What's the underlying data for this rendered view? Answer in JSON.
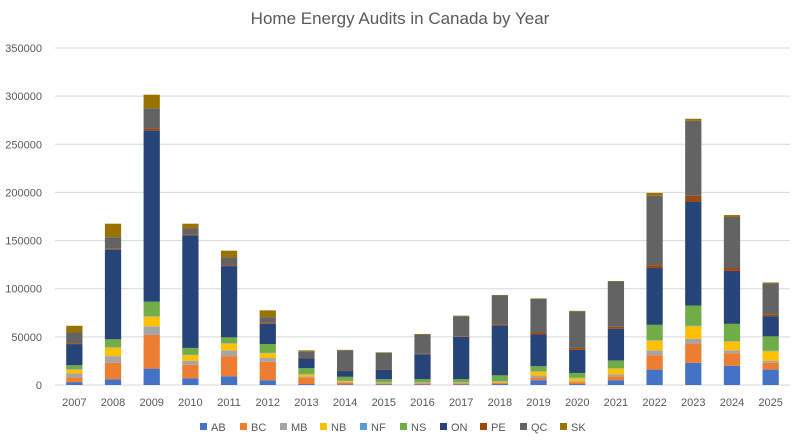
{
  "chart_data": {
    "type": "bar",
    "stacked": true,
    "title": "Home Energy Audits in Canada by Year",
    "xlabel": "",
    "ylabel": "",
    "ylim": [
      0,
      350000
    ],
    "yticks": [
      0,
      50000,
      100000,
      150000,
      200000,
      250000,
      300000,
      350000
    ],
    "ytick_labels": [
      "0",
      "50000",
      "100000",
      "150000",
      "200000",
      "250000",
      "300000",
      "350000"
    ],
    "grid": true,
    "legend_position": "bottom",
    "categories": [
      "2007",
      "2008",
      "2009",
      "2010",
      "2011",
      "2012",
      "2013",
      "2014",
      "2015",
      "2016",
      "2017",
      "2018",
      "2019",
      "2020",
      "2021",
      "2022",
      "2023",
      "2024",
      "2025"
    ],
    "series": [
      {
        "name": "AB",
        "color": "#4472C4",
        "values": [
          3000,
          6000,
          17000,
          7000,
          9000,
          5000,
          1000,
          500,
          500,
          500,
          500,
          1000,
          5000,
          1000,
          5000,
          16000,
          23000,
          20000,
          16000
        ]
      },
      {
        "name": "BC",
        "color": "#ED7D31",
        "values": [
          5000,
          17000,
          35000,
          14000,
          21000,
          19000,
          7000,
          2000,
          1000,
          1000,
          1000,
          1000,
          3000,
          2000,
          4000,
          15000,
          20000,
          13000,
          7000
        ]
      },
      {
        "name": "MB",
        "color": "#A5A5A5",
        "values": [
          4000,
          7000,
          9000,
          4000,
          6000,
          4000,
          1000,
          500,
          500,
          500,
          500,
          500,
          2000,
          1000,
          2000,
          5000,
          5000,
          3000,
          2000
        ]
      },
      {
        "name": "NB",
        "color": "#FFC000",
        "values": [
          4000,
          9000,
          10000,
          6000,
          7000,
          5000,
          2000,
          1000,
          500,
          500,
          500,
          1000,
          4000,
          3000,
          6000,
          10000,
          13000,
          9000,
          10000
        ]
      },
      {
        "name": "NF",
        "color": "#5B9BD5",
        "values": [
          500,
          500,
          500,
          500,
          500,
          500,
          500,
          500,
          500,
          500,
          500,
          500,
          500,
          500,
          500,
          500,
          500,
          500,
          500
        ]
      },
      {
        "name": "NS",
        "color": "#70AD47",
        "values": [
          4000,
          8000,
          15000,
          7000,
          6000,
          9000,
          6000,
          4000,
          3000,
          3000,
          3000,
          6000,
          5000,
          5000,
          8000,
          16000,
          21000,
          18000,
          15000
        ]
      },
      {
        "name": "ON",
        "color": "#264478",
        "values": [
          22000,
          93000,
          178000,
          117000,
          74000,
          21000,
          10000,
          6000,
          10000,
          26000,
          44000,
          52000,
          33000,
          24000,
          33000,
          59000,
          108000,
          55000,
          21000
        ]
      },
      {
        "name": "PE",
        "color": "#9E480E",
        "values": [
          1000,
          1000,
          2000,
          1000,
          1000,
          1000,
          500,
          500,
          500,
          500,
          500,
          1000,
          2000,
          2000,
          2000,
          3000,
          6000,
          3000,
          2000
        ]
      },
      {
        "name": "QC",
        "color": "#636363",
        "values": [
          11000,
          12000,
          21000,
          6000,
          8000,
          6000,
          7000,
          21000,
          17000,
          20000,
          21000,
          30000,
          35000,
          38000,
          47000,
          72000,
          78000,
          53000,
          32000
        ]
      },
      {
        "name": "SK",
        "color": "#997300",
        "values": [
          7000,
          14000,
          14000,
          5000,
          7000,
          7000,
          1000,
          500,
          500,
          500,
          500,
          500,
          500,
          500,
          500,
          3000,
          2000,
          2000,
          1000
        ]
      }
    ]
  }
}
